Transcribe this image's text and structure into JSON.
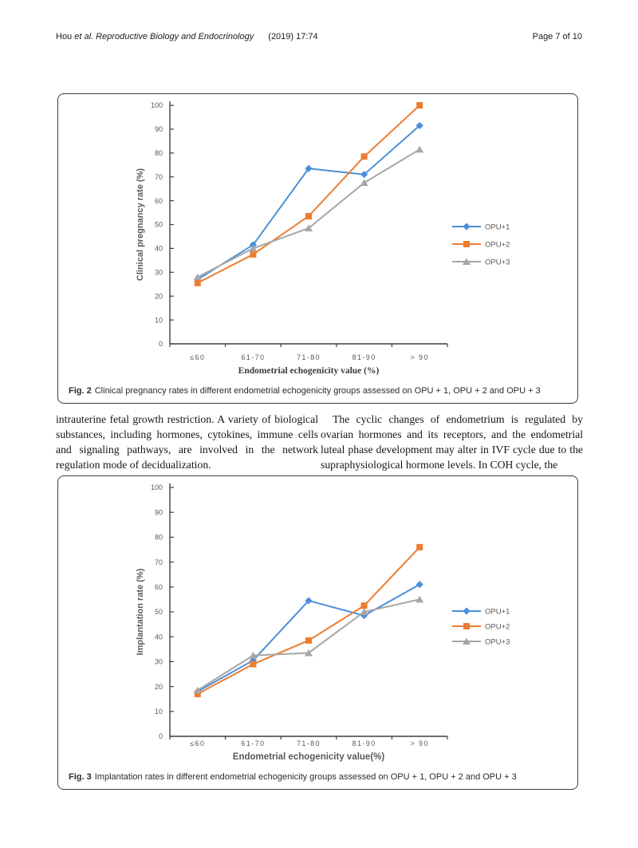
{
  "header": {
    "author": "Hou ",
    "etal_journal": "et al. Reproductive Biology and Endocrinology",
    "citation": "(2019) 17:74",
    "page_label": "Page 7 of 10"
  },
  "body": {
    "left_column": "intrauterine fetal growth restriction. A variety of biological substances, including hormones, cytokines, immune cells and signaling pathways, are involved in the network regulation mode of decidualization.",
    "right_column": "The cyclic changes of endometrium is regulated by ovarian hormones and its receptors, and the endometrial luteal phase development may alter in IVF cycle due to the supraphysiological hormone levels. In COH cycle, the"
  },
  "figures": [
    {
      "label": "Fig. 2",
      "caption": "Clinical pregnancy rates in different endometrial echogenicity groups assessed on OPU + 1, OPU + 2 and OPU + 3"
    },
    {
      "label": "Fig. 3",
      "caption": "Implantation rates in different endometrial echogenicity groups assessed on OPU + 1, OPU + 2 and OPU + 3"
    }
  ],
  "colors": {
    "opu1_blue": "#4A90D9",
    "opu2_orange": "#ED7D31",
    "opu3_gray": "#A6A6A6",
    "axis": "#3F3F3F",
    "tick_text": "#595959"
  },
  "chart_data": [
    {
      "type": "line",
      "title": "",
      "categories": [
        "≤60",
        "61-70",
        "71-80",
        "81-90",
        "> 90"
      ],
      "series": [
        {
          "name": "OPU+1",
          "color": "#4A90D9",
          "marker": "diamond",
          "values": [
            27,
            41.5,
            73.5,
            71,
            91.5
          ]
        },
        {
          "name": "OPU+2",
          "color": "#ED7D31",
          "marker": "square",
          "values": [
            25.5,
            37.5,
            53.5,
            78.5,
            100
          ]
        },
        {
          "name": "OPU+3",
          "color": "#A6A6A6",
          "marker": "triangle",
          "values": [
            28,
            40,
            48.5,
            67.5,
            81.5
          ]
        }
      ],
      "xlabel": "Endometrial  echogenicity value (%)",
      "ylabel": "Clinical pregnancy rate (%)",
      "ylim": [
        0,
        100
      ],
      "ytick": 10,
      "grid": false,
      "legend_position": "right"
    },
    {
      "type": "line",
      "title": "",
      "categories": [
        "≤60",
        "61-70",
        "71-80",
        "81-90",
        "> 90"
      ],
      "series": [
        {
          "name": "OPU+1",
          "color": "#4A90D9",
          "marker": "diamond",
          "values": [
            18,
            30.5,
            54.5,
            48.5,
            61
          ]
        },
        {
          "name": "OPU+2",
          "color": "#ED7D31",
          "marker": "square",
          "values": [
            17,
            29,
            38.5,
            52.5,
            76
          ]
        },
        {
          "name": "OPU+3",
          "color": "#A6A6A6",
          "marker": "triangle",
          "values": [
            18.5,
            32.5,
            33.5,
            50,
            55
          ]
        }
      ],
      "xlabel": "Endometrial  echogenicity value(%)",
      "ylabel": "Implantation rate (%)",
      "ylim": [
        0,
        100
      ],
      "ytick": 10,
      "grid": false,
      "legend_position": "right"
    }
  ]
}
